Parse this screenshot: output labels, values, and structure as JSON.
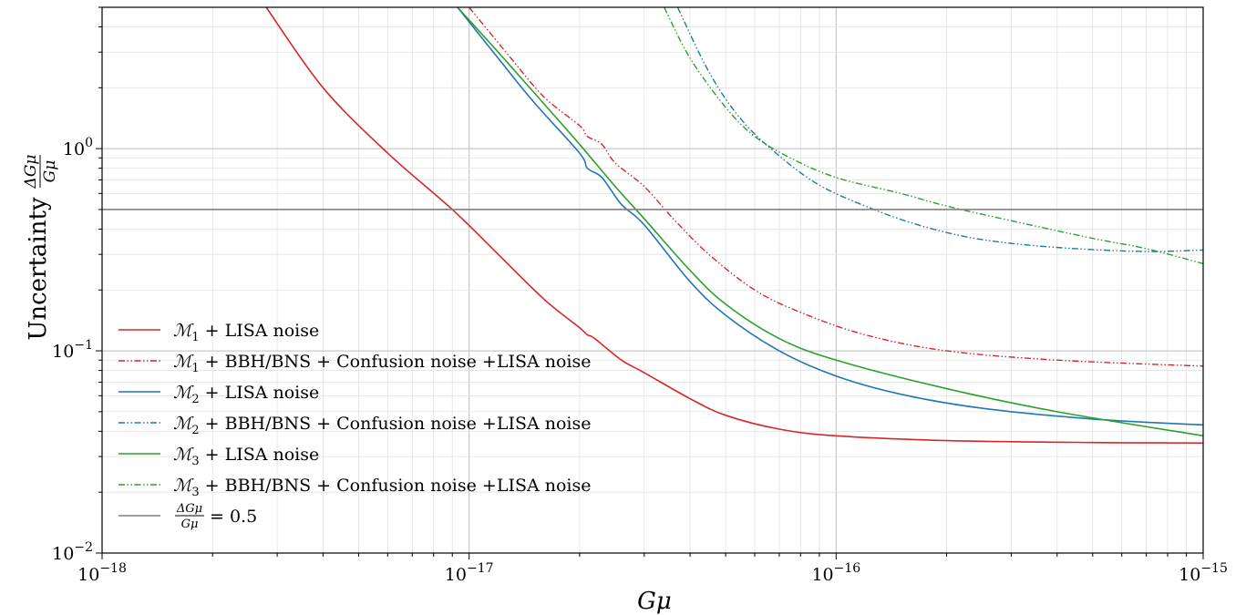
{
  "chart_data": {
    "type": "line",
    "xlabel": "Gμ",
    "ylabel": "Uncertainty ΔGμ/Gμ",
    "x_scale": "log",
    "y_scale": "log",
    "xlim": [
      1e-18,
      1e-15
    ],
    "ylim": [
      0.01,
      5
    ],
    "grid": true,
    "legend_placement": "lower-left",
    "x_ticks": [
      {
        "value": 1e-18,
        "base": "10",
        "exp": "−18"
      },
      {
        "value": 1e-17,
        "base": "10",
        "exp": "−17"
      },
      {
        "value": 1e-16,
        "base": "10",
        "exp": "−16"
      },
      {
        "value": 1e-15,
        "base": "10",
        "exp": "−15"
      }
    ],
    "y_ticks": [
      {
        "value": 0.01,
        "base": "10",
        "exp": "−2"
      },
      {
        "value": 0.1,
        "base": "10",
        "exp": "−1"
      },
      {
        "value": 1,
        "base": "10",
        "exp": "0"
      }
    ],
    "series": [
      {
        "name": "M1 + LISA noise",
        "legend_sub": "1",
        "legend_rest": " + LISA noise",
        "color": "#d62728",
        "dash": "solid",
        "x": [
          2.8e-18,
          4e-18,
          6e-18,
          9e-18,
          1.2e-17,
          1.6e-17,
          2e-17,
          2.1e-17,
          2.2e-17,
          2.6e-17,
          3e-17,
          4e-17,
          5e-17,
          7e-17,
          1e-16,
          2e-16,
          5e-16,
          1e-15
        ],
        "y": [
          5,
          2,
          0.95,
          0.5,
          0.3,
          0.18,
          0.13,
          0.12,
          0.115,
          0.09,
          0.078,
          0.058,
          0.048,
          0.041,
          0.038,
          0.036,
          0.0352,
          0.035
        ]
      },
      {
        "name": "M1 + BBH/BNS + Confusion noise +LISA noise",
        "legend_sub": "1",
        "legend_rest": " + BBH/BNS + Confusion noise +LISA noise",
        "color": "#d62728",
        "dash": "dashdot",
        "x": [
          1e-17,
          1.3e-17,
          1.6e-17,
          2e-17,
          2.1e-17,
          2.3e-17,
          2.5e-17,
          3e-17,
          3.6e-17,
          4.5e-17,
          6e-17,
          8e-17,
          1.2e-16,
          2e-16,
          4e-16,
          1e-15
        ],
        "y": [
          5,
          2.8,
          1.8,
          1.3,
          1.15,
          1.05,
          0.85,
          0.65,
          0.45,
          0.3,
          0.2,
          0.155,
          0.12,
          0.1,
          0.09,
          0.084
        ]
      },
      {
        "name": "M2 + LISA noise",
        "legend_sub": "2",
        "legend_rest": " + LISA noise",
        "color": "#1f77b4",
        "dash": "solid",
        "x": [
          9.3e-18,
          1.2e-17,
          1.5e-17,
          2e-17,
          2.1e-17,
          2.3e-17,
          2.6e-17,
          3e-17,
          4e-17,
          5e-17,
          7e-17,
          1e-16,
          1.5e-16,
          2.5e-16,
          5e-16,
          1e-15
        ],
        "y": [
          5,
          2.8,
          1.7,
          0.95,
          0.8,
          0.72,
          0.53,
          0.42,
          0.22,
          0.15,
          0.1,
          0.075,
          0.061,
          0.052,
          0.046,
          0.043
        ]
      },
      {
        "name": "M2 + BBH/BNS + Confusion noise +LISA noise",
        "legend_sub": "2",
        "legend_rest": " + BBH/BNS + Confusion noise +LISA noise",
        "color": "#1f77b4",
        "dash": "dashdot",
        "x": [
          3.7e-17,
          4.5e-17,
          5.5e-17,
          7e-17,
          9e-17,
          1.2e-16,
          1.6e-16,
          2.2e-16,
          3e-16,
          4.5e-16,
          7e-16,
          1e-15
        ],
        "y": [
          5,
          2.4,
          1.4,
          0.92,
          0.66,
          0.52,
          0.43,
          0.37,
          0.34,
          0.32,
          0.31,
          0.315
        ]
      },
      {
        "name": "M3 + LISA noise",
        "legend_sub": "3",
        "legend_rest": " + LISA noise",
        "color": "#2ca02c",
        "dash": "solid",
        "x": [
          9.3e-18,
          1.2e-17,
          1.5e-17,
          2e-17,
          2.5e-17,
          3e-17,
          4e-17,
          5e-17,
          7e-17,
          1e-16,
          2e-16,
          4e-16,
          1e-15
        ],
        "y": [
          5,
          3,
          1.9,
          1.05,
          0.65,
          0.45,
          0.25,
          0.17,
          0.115,
          0.09,
          0.065,
          0.05,
          0.038
        ]
      },
      {
        "name": "M3 + BBH/BNS + Confusion noise +LISA noise",
        "legend_sub": "3",
        "legend_rest": " + BBH/BNS + Confusion noise +LISA noise",
        "color": "#2ca02c",
        "dash": "dashdot",
        "x": [
          3.4e-17,
          4e-17,
          5e-17,
          6e-17,
          7.5e-17,
          1e-16,
          1.5e-16,
          2e-16,
          3e-16,
          5e-16,
          7e-16,
          1e-15
        ],
        "y": [
          5,
          2.8,
          1.6,
          1.15,
          0.9,
          0.72,
          0.6,
          0.52,
          0.44,
          0.36,
          0.32,
          0.27
        ]
      },
      {
        "name": "ΔGμ/Gμ = 0.5",
        "legend_rest": " = 0.5",
        "color": "#808080",
        "dash": "solid",
        "x": [
          1e-18,
          1e-15
        ],
        "y": [
          0.5,
          0.5
        ]
      }
    ]
  }
}
